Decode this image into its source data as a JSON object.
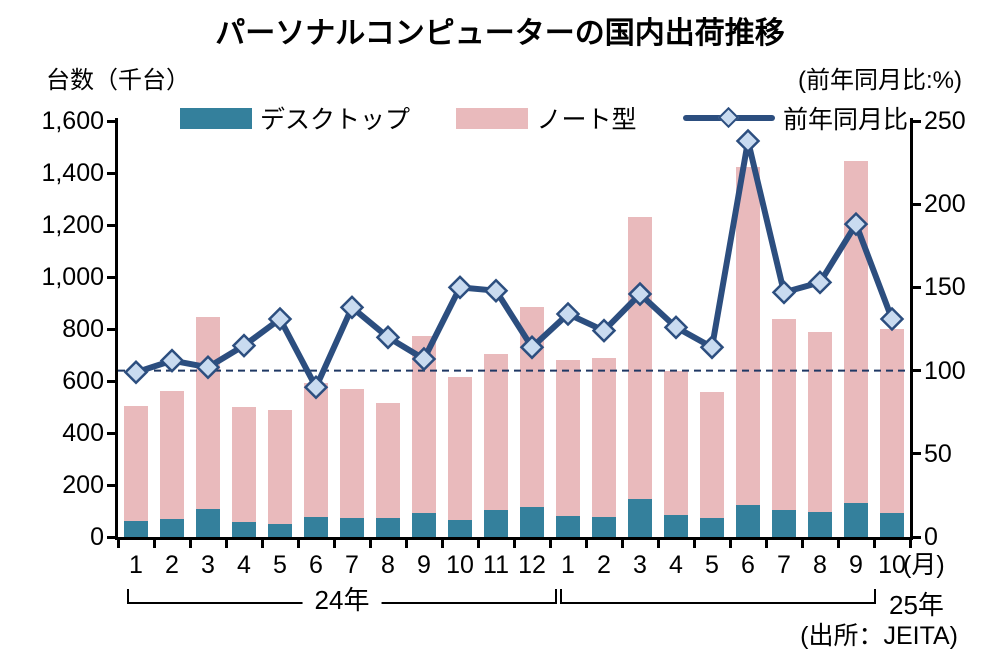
{
  "title": "パーソナルコンピューターの国内出荷推移",
  "chart_data": {
    "type": "combo-stacked-bar-line",
    "categories": [
      "1",
      "2",
      "3",
      "4",
      "5",
      "6",
      "7",
      "8",
      "9",
      "10",
      "11",
      "12",
      "1",
      "2",
      "3",
      "4",
      "5",
      "6",
      "7",
      "8",
      "9",
      "10"
    ],
    "category_groups": [
      {
        "label": "24年",
        "span": 12
      },
      {
        "label": "25年",
        "span": 10
      }
    ],
    "x_unit_suffix": "(月)",
    "bar_series": [
      {
        "name": "デスクトップ",
        "color": "#34809C",
        "values": [
          62,
          68,
          108,
          56,
          51,
          77,
          75,
          72,
          93,
          67,
          104,
          114,
          79,
          76,
          146,
          84,
          72,
          123,
          103,
          96,
          129,
          93
        ]
      },
      {
        "name": "ノート型",
        "color": "#E9BABC",
        "values": [
          443,
          492,
          737,
          444,
          439,
          515,
          495,
          443,
          682,
          547,
          601,
          771,
          603,
          612,
          1086,
          554,
          486,
          1299,
          737,
          694,
          1316,
          707
        ]
      }
    ],
    "bar_totals": [
      505,
      560,
      845,
      500,
      490,
      592,
      570,
      515,
      775,
      614,
      705,
      885,
      682,
      688,
      1232,
      638,
      558,
      1422,
      840,
      790,
      1445,
      800
    ],
    "line_series": {
      "name": "前年同月比",
      "color": "#2C4E7F",
      "marker_fill": "#C9DBF0",
      "axis": "right",
      "values": [
        99,
        106,
        102,
        115,
        131,
        90,
        138,
        120,
        107,
        150,
        148,
        114,
        134,
        124,
        146,
        126,
        114,
        238,
        147,
        153,
        188,
        131
      ]
    },
    "left_axis": {
      "label": "台数（千台）",
      "min": 0,
      "max": 1600,
      "step": 200
    },
    "right_axis": {
      "label": "(前年同月比:%)",
      "min": 0,
      "max": 250,
      "step": 50
    },
    "reference_line": {
      "value": 100,
      "axis": "right",
      "style": "dashed",
      "color": "#1F3864"
    },
    "grid": false,
    "legend_position": "top",
    "source": "(出所：JEITA)"
  }
}
